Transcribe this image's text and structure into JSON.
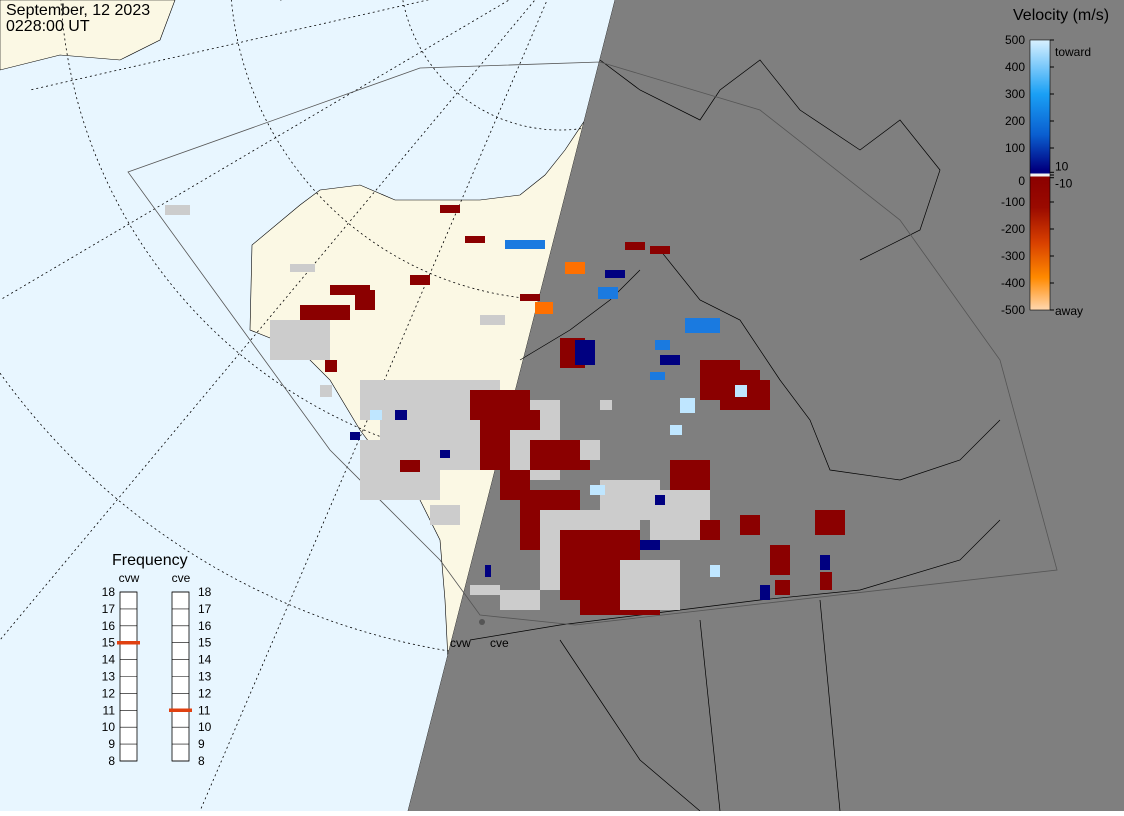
{
  "header": {
    "date": "September, 12 2023",
    "time": "0228:00 UT"
  },
  "velocity_scale": {
    "title": "Velocity (m/s)",
    "lim": [
      -500,
      500
    ],
    "ticks": [
      500,
      400,
      300,
      200,
      100,
      10,
      0,
      -10,
      -100,
      -200,
      -300,
      -400,
      -500
    ],
    "top_label": "toward",
    "bottom_label": "away"
  },
  "frequency": {
    "title": "Frequency",
    "lim": [
      8,
      18
    ],
    "ticks": [
      18,
      17,
      16,
      15,
      14,
      13,
      12,
      11,
      10,
      9,
      8
    ],
    "radars": [
      {
        "name": "cvw",
        "value": 15
      },
      {
        "name": "cve",
        "value": 11
      }
    ]
  },
  "map_labels": [
    "cvw",
    "cve"
  ]
}
